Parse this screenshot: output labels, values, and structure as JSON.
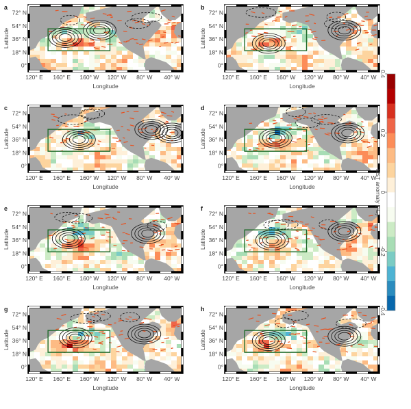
{
  "figure": {
    "panels": [
      {
        "label": "a",
        "maxima": [
          {
            "lon": 165,
            "lat": 38
          },
          {
            "lon": 215,
            "lat": 48
          }
        ]
      },
      {
        "label": "b",
        "maxima": [
          {
            "lon": 175,
            "lat": 30
          },
          {
            "lon": 285,
            "lat": 48
          }
        ]
      },
      {
        "label": "c",
        "maxima": [
          {
            "lon": 185,
            "lat": 36
          },
          {
            "lon": 290,
            "lat": 50
          },
          {
            "lon": 320,
            "lat": 45
          }
        ]
      },
      {
        "label": "d",
        "maxima": [
          {
            "lon": 185,
            "lat": 38
          },
          {
            "lon": 290,
            "lat": 45
          }
        ]
      },
      {
        "label": "e",
        "maxima": [
          {
            "lon": 170,
            "lat": 38
          },
          {
            "lon": 285,
            "lat": 45
          }
        ]
      },
      {
        "label": "f",
        "maxima": [
          {
            "lon": 180,
            "lat": 36
          },
          {
            "lon": 285,
            "lat": 48
          }
        ]
      },
      {
        "label": "g",
        "maxima": [
          {
            "lon": 180,
            "lat": 40
          },
          {
            "lon": 280,
            "lat": 45
          }
        ]
      },
      {
        "label": "h",
        "maxima": [
          {
            "lon": 175,
            "lat": 36
          },
          {
            "lon": 285,
            "lat": 42
          }
        ]
      }
    ],
    "x_axis": {
      "label": "Longitude",
      "ticks": [
        {
          "lon": 120,
          "label": "120° E"
        },
        {
          "lon": 160,
          "label": "160° E"
        },
        {
          "lon": 200,
          "label": "160° W"
        },
        {
          "lon": 240,
          "label": "120° W"
        },
        {
          "lon": 280,
          "label": "80° W"
        },
        {
          "lon": 320,
          "label": "40° W"
        }
      ]
    },
    "y_axis": {
      "label": "Latitude",
      "ticks": [
        {
          "lat": 72,
          "label": "72° N"
        },
        {
          "lat": 54,
          "label": "54° N"
        },
        {
          "lat": 36,
          "label": "36° N"
        },
        {
          "lat": 18,
          "label": "18° N"
        },
        {
          "lat": 0,
          "label": "0°"
        }
      ]
    },
    "box_region": {
      "lon_min": 140,
      "lon_max": 230,
      "lat_min": 20,
      "lat_max": 50
    },
    "colorbar": {
      "label": "SST anomaly (°C)",
      "min": -0.4,
      "max": 0.4,
      "ticks": [
        {
          "value": 0.4,
          "label": "0.4"
        },
        {
          "value": 0.2,
          "label": "0.2"
        },
        {
          "value": 0,
          "label": "0"
        },
        {
          "value": -0.2,
          "label": "-0.2"
        },
        {
          "value": -0.4,
          "label": "-0.4"
        }
      ],
      "colors": [
        "#0868ac",
        "#2b8cbe",
        "#4eb3d3",
        "#7bccc4",
        "#a8ddb5",
        "#ccebc5",
        "#f7fcf0",
        "#ffffff",
        "#fef0d9",
        "#fdd49e",
        "#fdbb84",
        "#fc8d59",
        "#ef6548",
        "#d7301f",
        "#b30000",
        "#990000"
      ]
    },
    "palette": {
      "land": "#a6a6a6",
      "box": "#1f6b2a",
      "contour": "#111111",
      "vector": "#e8501e"
    }
  }
}
